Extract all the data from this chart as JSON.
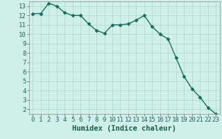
{
  "x": [
    0,
    1,
    2,
    3,
    4,
    5,
    6,
    7,
    8,
    9,
    10,
    11,
    12,
    13,
    14,
    15,
    16,
    17,
    18,
    19,
    20,
    21,
    22,
    23
  ],
  "y": [
    12.2,
    12.2,
    13.3,
    13.0,
    12.3,
    12.0,
    12.0,
    11.1,
    10.4,
    10.1,
    11.0,
    11.0,
    11.1,
    11.5,
    12.0,
    10.8,
    10.0,
    9.5,
    7.5,
    5.5,
    4.2,
    3.3,
    2.2,
    1.5
  ],
  "line_color": "#1a6b5a",
  "marker": "D",
  "marker_size": 2.5,
  "bg_color": "#cef0e8",
  "grid_color": "#b8ddd6",
  "xlabel": "Humidex (Indice chaleur)",
  "xlabel_fontsize": 7.5,
  "tick_fontsize": 6.5,
  "xlim": [
    -0.5,
    23.5
  ],
  "ylim": [
    1.5,
    13.5
  ],
  "yticks": [
    2,
    3,
    4,
    5,
    6,
    7,
    8,
    9,
    10,
    11,
    12,
    13
  ],
  "xticks": [
    0,
    1,
    2,
    3,
    4,
    5,
    6,
    7,
    8,
    9,
    10,
    11,
    12,
    13,
    14,
    15,
    16,
    17,
    18,
    19,
    20,
    21,
    22,
    23
  ],
  "line_width": 1.0
}
